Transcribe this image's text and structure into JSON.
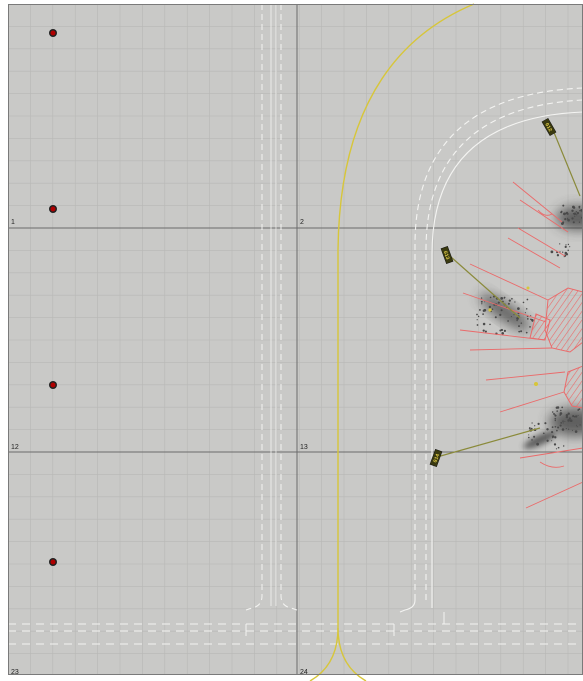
{
  "layout_view": {
    "background_color": "#c9c9c7",
    "grid_line_color": "#b8b8b6",
    "major_grid_color": "#6b6b6b",
    "taxi_line_color": "#d7c63a",
    "pavement_line_color": "#f4f4f2",
    "hatch_color": "#ea6a6a",
    "marker_color": "#b00000",
    "gate_tag_color": "#3a3a10",
    "cell_labels": [
      "1",
      "2",
      "12",
      "13",
      "23",
      "24"
    ],
    "gate_tags": [
      "G12",
      "G13",
      "G14"
    ]
  }
}
